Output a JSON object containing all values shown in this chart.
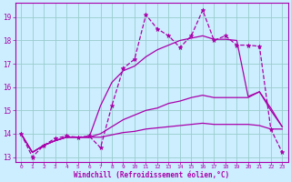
{
  "xlabel": "Windchill (Refroidissement éolien,°C)",
  "bg_color": "#cceeff",
  "line_color": "#aa00aa",
  "xlim": [
    -0.5,
    23.5
  ],
  "ylim": [
    12.8,
    19.6
  ],
  "yticks": [
    13,
    14,
    15,
    16,
    17,
    18,
    19
  ],
  "xticks": [
    0,
    1,
    2,
    3,
    4,
    5,
    6,
    7,
    8,
    9,
    10,
    11,
    12,
    13,
    14,
    15,
    16,
    17,
    18,
    19,
    20,
    21,
    22,
    23
  ],
  "grid_color": "#99cccc",
  "lines": [
    {
      "x": [
        0,
        1,
        2,
        3,
        4,
        5,
        6,
        7,
        8,
        9,
        10,
        11,
        12,
        13,
        14,
        15,
        16,
        17,
        18,
        19,
        20,
        21,
        22,
        23
      ],
      "y": [
        14.0,
        13.0,
        13.5,
        13.8,
        13.9,
        13.85,
        13.9,
        13.4,
        15.2,
        16.8,
        17.2,
        19.1,
        18.5,
        18.2,
        17.7,
        18.2,
        19.3,
        18.0,
        18.2,
        17.8,
        17.8,
        17.75,
        14.2,
        13.2
      ],
      "marker": "*",
      "linestyle": "--",
      "lw": 0.9
    },
    {
      "x": [
        0,
        1,
        2,
        3,
        4,
        5,
        6,
        7,
        8,
        9,
        10,
        11,
        12,
        13,
        14,
        15,
        16,
        17,
        18,
        19,
        20,
        21,
        22,
        23
      ],
      "y": [
        14.0,
        13.2,
        13.5,
        13.7,
        13.85,
        13.85,
        13.85,
        15.2,
        16.2,
        16.7,
        16.9,
        17.3,
        17.6,
        17.8,
        18.0,
        18.1,
        18.2,
        18.05,
        18.05,
        18.0,
        15.6,
        15.8,
        15.1,
        14.3
      ],
      "marker": null,
      "linestyle": "-",
      "lw": 0.9
    },
    {
      "x": [
        0,
        1,
        2,
        3,
        4,
        5,
        6,
        7,
        8,
        9,
        10,
        11,
        12,
        13,
        14,
        15,
        16,
        17,
        18,
        19,
        20,
        21,
        22,
        23
      ],
      "y": [
        14.0,
        13.2,
        13.5,
        13.7,
        13.85,
        13.85,
        13.85,
        14.0,
        14.3,
        14.6,
        14.8,
        15.0,
        15.1,
        15.3,
        15.4,
        15.55,
        15.65,
        15.55,
        15.55,
        15.55,
        15.55,
        15.8,
        15.0,
        14.3
      ],
      "marker": null,
      "linestyle": "-",
      "lw": 0.9
    },
    {
      "x": [
        0,
        1,
        2,
        3,
        4,
        5,
        6,
        7,
        8,
        9,
        10,
        11,
        12,
        13,
        14,
        15,
        16,
        17,
        18,
        19,
        20,
        21,
        22,
        23
      ],
      "y": [
        14.0,
        13.2,
        13.5,
        13.7,
        13.85,
        13.85,
        13.85,
        13.85,
        13.95,
        14.05,
        14.1,
        14.2,
        14.25,
        14.3,
        14.35,
        14.4,
        14.45,
        14.4,
        14.4,
        14.4,
        14.4,
        14.35,
        14.2,
        14.2
      ],
      "marker": null,
      "linestyle": "-",
      "lw": 0.9
    }
  ]
}
